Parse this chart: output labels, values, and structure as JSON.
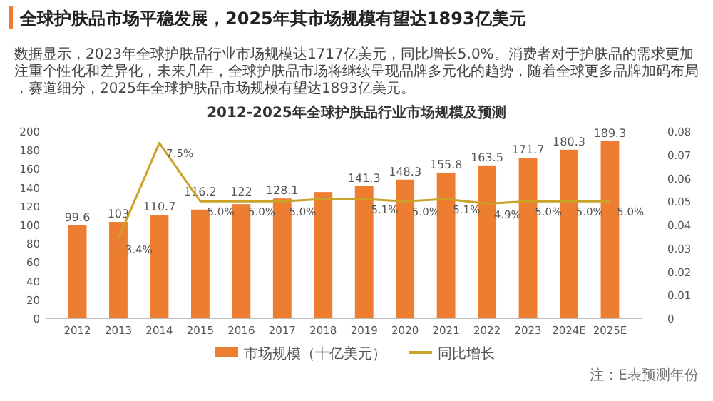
{
  "chart_data": {
    "type": "bar",
    "title": "全球护肤品市场平稳发展，2025年其市场规模有望达1893亿美元",
    "subtitle": "数据显示，2023年全球护肤品行业市场规模达1717亿美元，同比增长5.0%。消费者对于护肤品的需求更加注重个性化和差异化，未来几年，全球护肤品市场将继续呈现品牌多元化的趋势，随着全球更多品牌加码布局，赛道细分，2025年全球护肤品市场规模有望达1893亿美元。",
    "annotations": [
      "2012-2025年全球护肤品行业市场规模及预测",
      "注：E表预测年份"
    ],
    "categories": [
      "2012",
      "2013",
      "2014",
      "2015",
      "2016",
      "2017",
      "2018",
      "2019",
      "2020",
      "2021",
      "2022",
      "2023",
      "2024E",
      "2025E"
    ],
    "series": [
      {
        "name": "市场规模（十亿美元）",
        "color": "#ed7d31",
        "values": [
          99.6,
          103,
          110.7,
          116.2,
          122,
          128.1,
          135,
          141.3,
          148.3,
          155.8,
          163.5,
          171.7,
          180.3,
          189.3
        ],
        "value_labels": [
          "99.6",
          "103",
          "110.7",
          "116.2",
          "122",
          "128.1",
          null,
          "141.3",
          "148.3",
          "155.8",
          "163.5",
          "171.7",
          "180.3",
          "189.3"
        ]
      },
      {
        "name": "同比增长",
        "type": "line",
        "axis": "y2",
        "color": "#c9a227",
        "values": [
          null,
          0.034,
          0.075,
          0.05,
          0.05,
          0.05,
          0.051,
          0.051,
          0.05,
          0.051,
          0.049,
          0.05,
          0.05,
          0.05
        ],
        "value_labels": [
          null,
          "3.4%",
          "7.5%",
          "5.0%",
          "5.0%",
          "5.0%",
          null,
          "5.1%",
          "5.0%",
          "5.1%",
          "4.9%",
          "5.0%",
          "5.0%",
          "5.0%"
        ]
      }
    ],
    "ylim": [
      0,
      200
    ],
    "yticks": [
      0,
      20,
      40,
      60,
      80,
      100,
      120,
      140,
      160,
      180,
      200
    ],
    "y2lim": [
      0,
      0.08
    ],
    "y2ticks": [
      0,
      0.01,
      0.02,
      0.03,
      0.04,
      0.05,
      0.06,
      0.07,
      0.08
    ],
    "legend": "bottom",
    "marker": "none"
  }
}
